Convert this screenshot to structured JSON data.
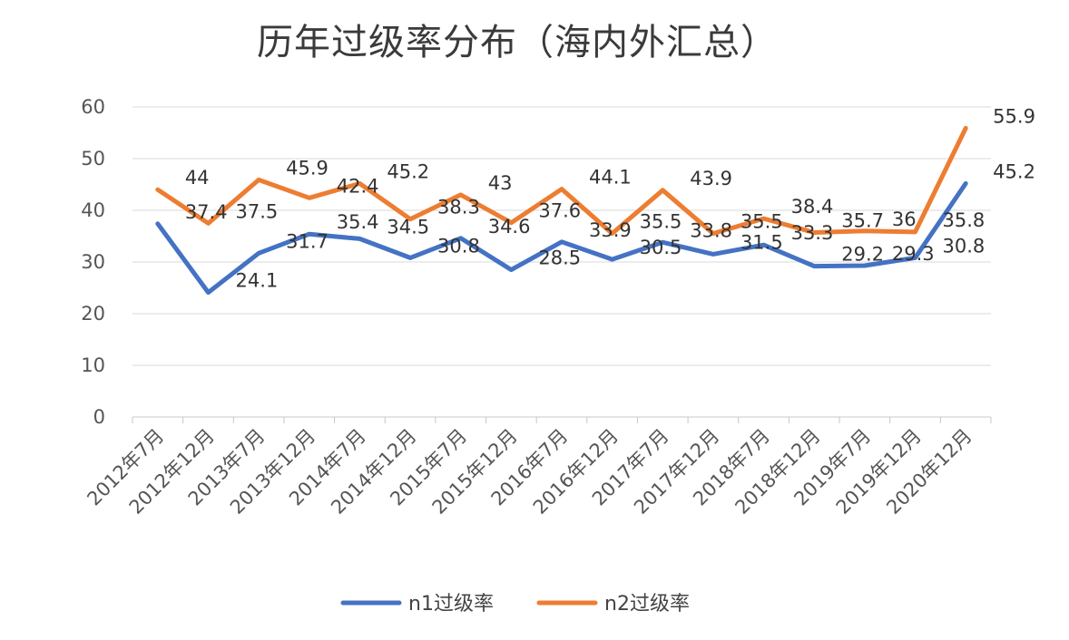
{
  "chart_data": {
    "type": "line",
    "title": "历年过级率分布（海内外汇总）",
    "xlabel": "",
    "ylabel": "",
    "categories": [
      "2012年7月",
      "2012年12月",
      "2013年7月",
      "2013年12月",
      "2014年7月",
      "2014年12月",
      "2015年7月",
      "2015年12月",
      "2016年7月",
      "2016年12月",
      "2017年7月",
      "2017年12月",
      "2018年7月",
      "2018年12月",
      "2019年7月",
      "2019年12月",
      "2020年12月"
    ],
    "series": [
      {
        "name": "n1过级率",
        "color": "#4472C4",
        "values": [
          37.4,
          24.1,
          31.7,
          35.4,
          34.5,
          30.8,
          34.6,
          28.5,
          33.9,
          30.5,
          33.8,
          31.5,
          33.3,
          29.2,
          29.3,
          30.8,
          45.2
        ],
        "labels": [
          "37.4",
          "24.1",
          "31.7",
          "35.4",
          "34.5",
          "30.8",
          "34.6",
          "28.5",
          "33.9",
          "30.5",
          "33.8",
          "31.5",
          "33.3",
          "29.2",
          "29.3",
          "30.8",
          "45.2"
        ]
      },
      {
        "name": "n2过级率",
        "color": "#ED7D31",
        "values": [
          44,
          37.5,
          45.9,
          42.4,
          45.2,
          38.3,
          43,
          37.6,
          44.1,
          35.5,
          43.9,
          35.5,
          38.4,
          35.7,
          36,
          35.8,
          55.9
        ],
        "labels": [
          "44",
          "37.5",
          "45.9",
          "42.4",
          "45.2",
          "38.3",
          "43",
          "37.6",
          "44.1",
          "35.5",
          "43.9",
          "35.5",
          "38.4",
          "35.7",
          "36",
          "35.8",
          "55.9"
        ]
      }
    ],
    "ylim": [
      0,
      60
    ],
    "yticks": [
      "0",
      "10",
      "20",
      "30",
      "40",
      "50",
      "60"
    ],
    "grid": true,
    "legend": "bottom"
  }
}
